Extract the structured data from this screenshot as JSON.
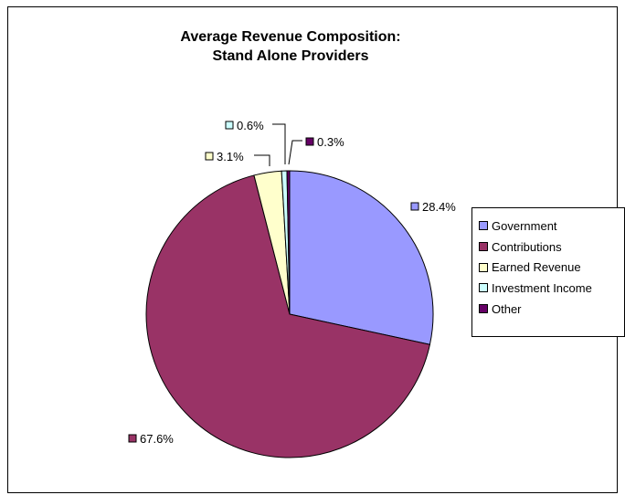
{
  "chart_data": {
    "type": "pie",
    "title_line1": "Average Revenue Composition:",
    "title_line2": "Stand Alone Providers",
    "slices": [
      {
        "name": "Government",
        "value": 28.4,
        "label": "28.4%",
        "color": "#9999ff"
      },
      {
        "name": "Contributions",
        "value": 67.6,
        "label": "67.6%",
        "color": "#993366"
      },
      {
        "name": "Earned Revenue",
        "value": 3.1,
        "label": "3.1%",
        "color": "#ffffcc"
      },
      {
        "name": "Investment Income",
        "value": 0.6,
        "label": "0.6%",
        "color": "#ccffff"
      },
      {
        "name": "Other",
        "value": 0.3,
        "label": "0.3%",
        "color": "#660066"
      }
    ],
    "legend_position": "right"
  }
}
